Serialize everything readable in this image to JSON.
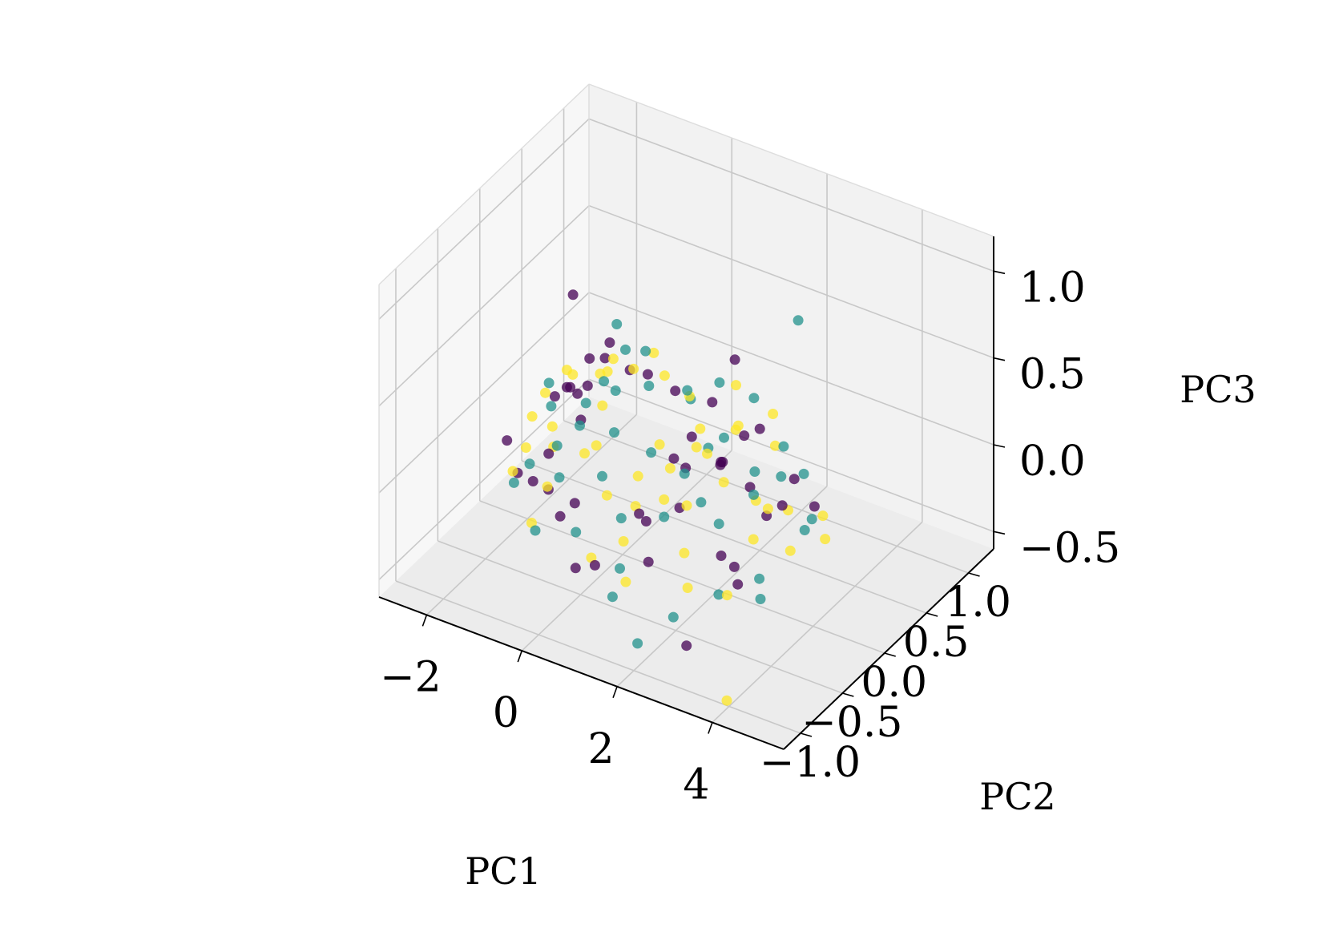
{
  "chart_data": {
    "type": "scatter",
    "projection": "3d",
    "title": "",
    "xlabel": "PC1",
    "ylabel": "PC2",
    "zlabel": "PC3",
    "xlim": [
      -3.0,
      5.5
    ],
    "ylim": [
      -1.2,
      1.3
    ],
    "zlim": [
      -0.6,
      1.2
    ],
    "x_ticks": [
      -2,
      0,
      2,
      4
    ],
    "x_tick_labels": [
      "−2",
      "0",
      "2",
      "4"
    ],
    "y_ticks": [
      -1.0,
      -0.5,
      0.0,
      0.5,
      1.0
    ],
    "y_tick_labels": [
      "−1.0",
      "−0.5",
      "0.0",
      "0.5",
      "1.0"
    ],
    "z_ticks": [
      -0.5,
      0.0,
      0.5,
      1.0
    ],
    "z_tick_labels": [
      "−0.5",
      "0.0",
      "0.5",
      "1.0"
    ],
    "grid": true,
    "legend": "none",
    "colormap": "viridis",
    "class_colors": [
      "#440154",
      "#21918c",
      "#fde725"
    ],
    "pane_colors": [
      "#f2f2f2",
      "#f7f7f7",
      "#ececec"
    ],
    "grid_color": "#c8c8c8",
    "point_alpha": 0.75,
    "series": [
      {
        "class": 0,
        "points": [
          [
            -0.6,
            -0.25,
            0.95
          ],
          [
            1.3,
            0.6,
            0.38
          ],
          [
            -1.6,
            0.1,
            0.1
          ],
          [
            -1.2,
            -0.2,
            -0.05
          ],
          [
            -0.9,
            0.3,
            0.3
          ],
          [
            -1.3,
            0.2,
            0.1
          ],
          [
            -1.0,
            0.15,
            0.2
          ],
          [
            1.8,
            0.15,
            0.05
          ],
          [
            1.7,
            0.2,
            0.0
          ],
          [
            2.2,
            0.2,
            0.22
          ],
          [
            1.2,
            -0.4,
            -0.1
          ],
          [
            2.6,
            -0.3,
            -0.2
          ],
          [
            0.3,
            -0.5,
            -0.4
          ],
          [
            2.4,
            -0.6,
            -0.6
          ],
          [
            3.5,
            0.3,
            -0.1
          ],
          [
            0.0,
            0.3,
            0.3
          ],
          [
            -0.8,
            0.3,
            0.4
          ],
          [
            -1.4,
            0.4,
            0.2
          ],
          [
            -1.9,
            -0.3,
            0.0
          ],
          [
            0.1,
            -0.8,
            0.0
          ],
          [
            1.5,
            -0.1,
            0.1
          ],
          [
            2.9,
            0.4,
            -0.05
          ],
          [
            3.2,
            -0.1,
            0.0
          ],
          [
            0.7,
            -0.2,
            -0.2
          ],
          [
            -0.5,
            -0.6,
            0.0
          ],
          [
            2.1,
            0.0,
            0.15
          ],
          [
            1.0,
            0.5,
            0.15
          ],
          [
            -1.1,
            0.0,
            0.25
          ],
          [
            3.3,
            -0.5,
            -0.2
          ],
          [
            0.6,
            -0.9,
            -0.2
          ],
          [
            -0.2,
            0.2,
            0.35
          ],
          [
            1.6,
            -0.6,
            -0.2
          ],
          [
            2.5,
            0.1,
            0.0
          ],
          [
            -1.5,
            -0.4,
            -0.1
          ],
          [
            0.9,
            0.1,
            0.0
          ],
          [
            -0.7,
            -0.1,
            0.15
          ],
          [
            3.0,
            0.2,
            -0.1
          ],
          [
            1.9,
            -0.4,
            0.05
          ],
          [
            0.4,
            0.4,
            0.2
          ],
          [
            -1.7,
            0.3,
            0.05
          ],
          [
            2.7,
            -0.2,
            -0.3
          ],
          [
            -0.3,
            -0.4,
            -0.15
          ],
          [
            1.1,
            0.2,
            0.1
          ],
          [
            2.0,
            0.5,
            0.1
          ],
          [
            -1.0,
            -0.5,
            -0.05
          ]
        ]
      },
      {
        "class": 1,
        "points": [
          [
            -0.3,
            0.1,
            0.65
          ],
          [
            2.1,
            0.9,
            0.55
          ],
          [
            4.0,
            -0.1,
            0.0
          ],
          [
            -1.0,
            0.6,
            0.2
          ],
          [
            -1.3,
            0.3,
            0.0
          ],
          [
            1.6,
            0.3,
            0.1
          ],
          [
            2.4,
            0.2,
            -0.1
          ],
          [
            1.9,
            -0.9,
            -0.5
          ],
          [
            0.0,
            -0.1,
            0.15
          ],
          [
            -1.5,
            0.0,
            0.1
          ],
          [
            2.9,
            -0.5,
            -0.3
          ],
          [
            -1.2,
            -0.1,
            -0.05
          ],
          [
            0.5,
            -0.3,
            -0.2
          ],
          [
            3.1,
            0.4,
            0.0
          ],
          [
            1.3,
            0.0,
            0.0
          ],
          [
            -0.8,
            -0.3,
            -0.1
          ],
          [
            2.6,
            0.1,
            0.1
          ],
          [
            0.8,
            0.7,
            0.15
          ],
          [
            -1.6,
            -0.2,
            -0.15
          ],
          [
            -0.4,
            0.5,
            0.3
          ],
          [
            3.4,
            -0.3,
            -0.25
          ],
          [
            1.0,
            -0.6,
            -0.3
          ],
          [
            2.0,
            -0.2,
            0.0
          ],
          [
            0.2,
            0.2,
            0.3
          ],
          [
            -1.9,
            0.2,
            0.1
          ],
          [
            1.7,
            0.6,
            0.2
          ],
          [
            3.8,
            0.1,
            -0.05
          ],
          [
            0.6,
            0.0,
            0.05
          ],
          [
            -0.6,
            -0.7,
            -0.2
          ],
          [
            2.3,
            -0.7,
            -0.4
          ],
          [
            -1.1,
            0.4,
            0.1
          ],
          [
            1.4,
            -0.3,
            -0.1
          ],
          [
            2.8,
            0.3,
            0.0
          ],
          [
            -0.1,
            -0.5,
            -0.25
          ],
          [
            0.9,
            0.3,
            0.25
          ],
          [
            -1.4,
            -0.5,
            -0.1
          ],
          [
            1.8,
            0.0,
            0.2
          ],
          [
            3.6,
            -0.4,
            -0.3
          ],
          [
            0.3,
            0.6,
            0.1
          ],
          [
            -0.9,
            0.0,
            0.05
          ],
          [
            2.5,
            0.5,
            0.05
          ],
          [
            1.2,
            -0.8,
            -0.35
          ],
          [
            -0.5,
            0.2,
            0.2
          ],
          [
            0.1,
            -0.3,
            0.0
          ],
          [
            2.2,
            -0.1,
            -0.15
          ]
        ]
      },
      {
        "class": 2,
        "points": [
          [
            0.3,
            0.2,
            0.5
          ],
          [
            3.6,
            -0.8,
            -0.7
          ],
          [
            -1.8,
            0.1,
            0.1
          ],
          [
            -0.8,
            0.0,
            -0.1
          ],
          [
            1.4,
            -0.3,
            0.0
          ],
          [
            2.2,
            0.1,
            0.3
          ],
          [
            3.5,
            0.4,
            -0.2
          ],
          [
            -1.5,
            -0.3,
            0.0
          ],
          [
            -1.0,
            0.3,
            0.2
          ],
          [
            0.9,
            -0.5,
            -0.2
          ],
          [
            2.6,
            -0.7,
            -0.2
          ],
          [
            1.1,
            0.3,
            0.1
          ],
          [
            -1.2,
            0.5,
            0.1
          ],
          [
            0.2,
            -0.3,
            -0.1
          ],
          [
            2.3,
            -0.1,
            0.1
          ],
          [
            3.9,
            0.2,
            -0.2
          ],
          [
            -0.5,
            -0.8,
            -0.1
          ],
          [
            1.5,
            0.5,
            0.3
          ],
          [
            2.8,
            0.0,
            0.0
          ],
          [
            -1.7,
            0.3,
            0.15
          ],
          [
            0.6,
            0.1,
            0.05
          ],
          [
            -0.2,
            -0.2,
            0.1
          ],
          [
            1.9,
            0.3,
            0.2
          ],
          [
            3.1,
            -0.2,
            -0.1
          ],
          [
            -1.3,
            -0.1,
            0.05
          ],
          [
            0.4,
            -0.6,
            -0.3
          ],
          [
            2.0,
            -0.4,
            -0.2
          ],
          [
            -0.9,
            0.4,
            0.25
          ],
          [
            1.0,
            0.0,
            0.0
          ],
          [
            2.5,
            0.4,
            0.1
          ],
          [
            -1.6,
            -0.4,
            -0.1
          ],
          [
            0.0,
            0.5,
            0.2
          ],
          [
            3.3,
            0.1,
            -0.05
          ],
          [
            1.7,
            -0.2,
            -0.05
          ],
          [
            -0.6,
            0.1,
            0.15
          ],
          [
            2.9,
            -0.4,
            -0.35
          ],
          [
            -1.1,
            -0.2,
            0.0
          ],
          [
            0.7,
            0.4,
            0.2
          ],
          [
            1.3,
            -0.7,
            -0.3
          ],
          [
            -0.3,
            0.3,
            0.3
          ],
          [
            2.1,
            0.6,
            0.15
          ],
          [
            3.7,
            -0.1,
            -0.15
          ],
          [
            -1.9,
            0.0,
            0.0
          ],
          [
            0.5,
            -0.1,
            -0.05
          ],
          [
            1.6,
            0.1,
            0.1
          ],
          [
            2.7,
            0.2,
            -0.15
          ],
          [
            -0.7,
            -0.5,
            -0.05
          ],
          [
            0.8,
            -0.3,
            -0.1
          ],
          [
            -1.4,
            0.2,
            0.2
          ],
          [
            1.2,
            0.2,
            0.05
          ]
        ]
      }
    ]
  }
}
